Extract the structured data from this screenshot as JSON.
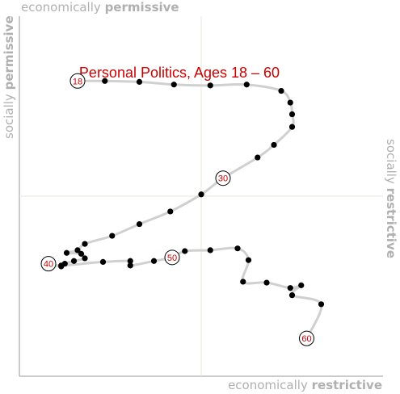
{
  "chart_data": {
    "type": "line",
    "title": "Personal Politics, Ages 18 – 60",
    "axes": {
      "x_low": "economically",
      "x_low_bold": "permissive",
      "x_high": "economically",
      "x_high_bold": "restrictive",
      "y_high": "socially",
      "y_high_bold": "permissive",
      "y_low": "socially",
      "y_low_bold": "restrictive"
    },
    "xlim": [
      -1,
      1
    ],
    "ylim": [
      -1,
      1
    ],
    "grid": "center cross lines",
    "series": [
      {
        "points": [
          {
            "x": -0.68,
            "y": 0.64,
            "label": "18"
          },
          {
            "x": -0.53,
            "y": 0.64
          },
          {
            "x": -0.34,
            "y": 0.635
          },
          {
            "x": -0.15,
            "y": 0.62
          },
          {
            "x": 0.05,
            "y": 0.615
          },
          {
            "x": 0.25,
            "y": 0.62
          },
          {
            "x": 0.44,
            "y": 0.585
          },
          {
            "x": 0.49,
            "y": 0.52
          },
          {
            "x": 0.5,
            "y": 0.455
          },
          {
            "x": 0.5,
            "y": 0.385
          },
          {
            "x": 0.4,
            "y": 0.285
          },
          {
            "x": 0.31,
            "y": 0.215
          },
          {
            "x": 0.12,
            "y": 0.1,
            "label": "30"
          },
          {
            "x": 0.0,
            "y": 0.01
          },
          {
            "x": -0.17,
            "y": -0.085
          },
          {
            "x": -0.34,
            "y": -0.155
          },
          {
            "x": -0.49,
            "y": -0.22
          },
          {
            "x": -0.64,
            "y": -0.265
          },
          {
            "x": -0.68,
            "y": -0.3
          },
          {
            "x": -0.74,
            "y": -0.315
          },
          {
            "x": -0.66,
            "y": -0.32
          },
          {
            "x": -0.64,
            "y": -0.345
          },
          {
            "x": -0.7,
            "y": -0.36
          },
          {
            "x": -0.75,
            "y": -0.375
          },
          {
            "x": -0.77,
            "y": -0.39
          },
          {
            "x": -0.84,
            "y": -0.375,
            "label": "40"
          },
          {
            "x": -0.77,
            "y": -0.385
          },
          {
            "x": -0.54,
            "y": -0.365
          },
          {
            "x": -0.39,
            "y": -0.36
          },
          {
            "x": -0.39,
            "y": -0.385
          },
          {
            "x": -0.26,
            "y": -0.36
          },
          {
            "x": -0.16,
            "y": -0.34,
            "label": "50"
          },
          {
            "x": -0.09,
            "y": -0.305
          },
          {
            "x": 0.05,
            "y": -0.3
          },
          {
            "x": 0.2,
            "y": -0.29
          },
          {
            "x": 0.26,
            "y": -0.355
          },
          {
            "x": 0.23,
            "y": -0.475
          },
          {
            "x": 0.36,
            "y": -0.48
          },
          {
            "x": 0.49,
            "y": -0.51
          },
          {
            "x": 0.55,
            "y": -0.495
          },
          {
            "x": 0.5,
            "y": -0.55
          },
          {
            "x": 0.66,
            "y": -0.6
          },
          {
            "x": 0.58,
            "y": -0.79,
            "label": "60"
          }
        ]
      }
    ]
  }
}
